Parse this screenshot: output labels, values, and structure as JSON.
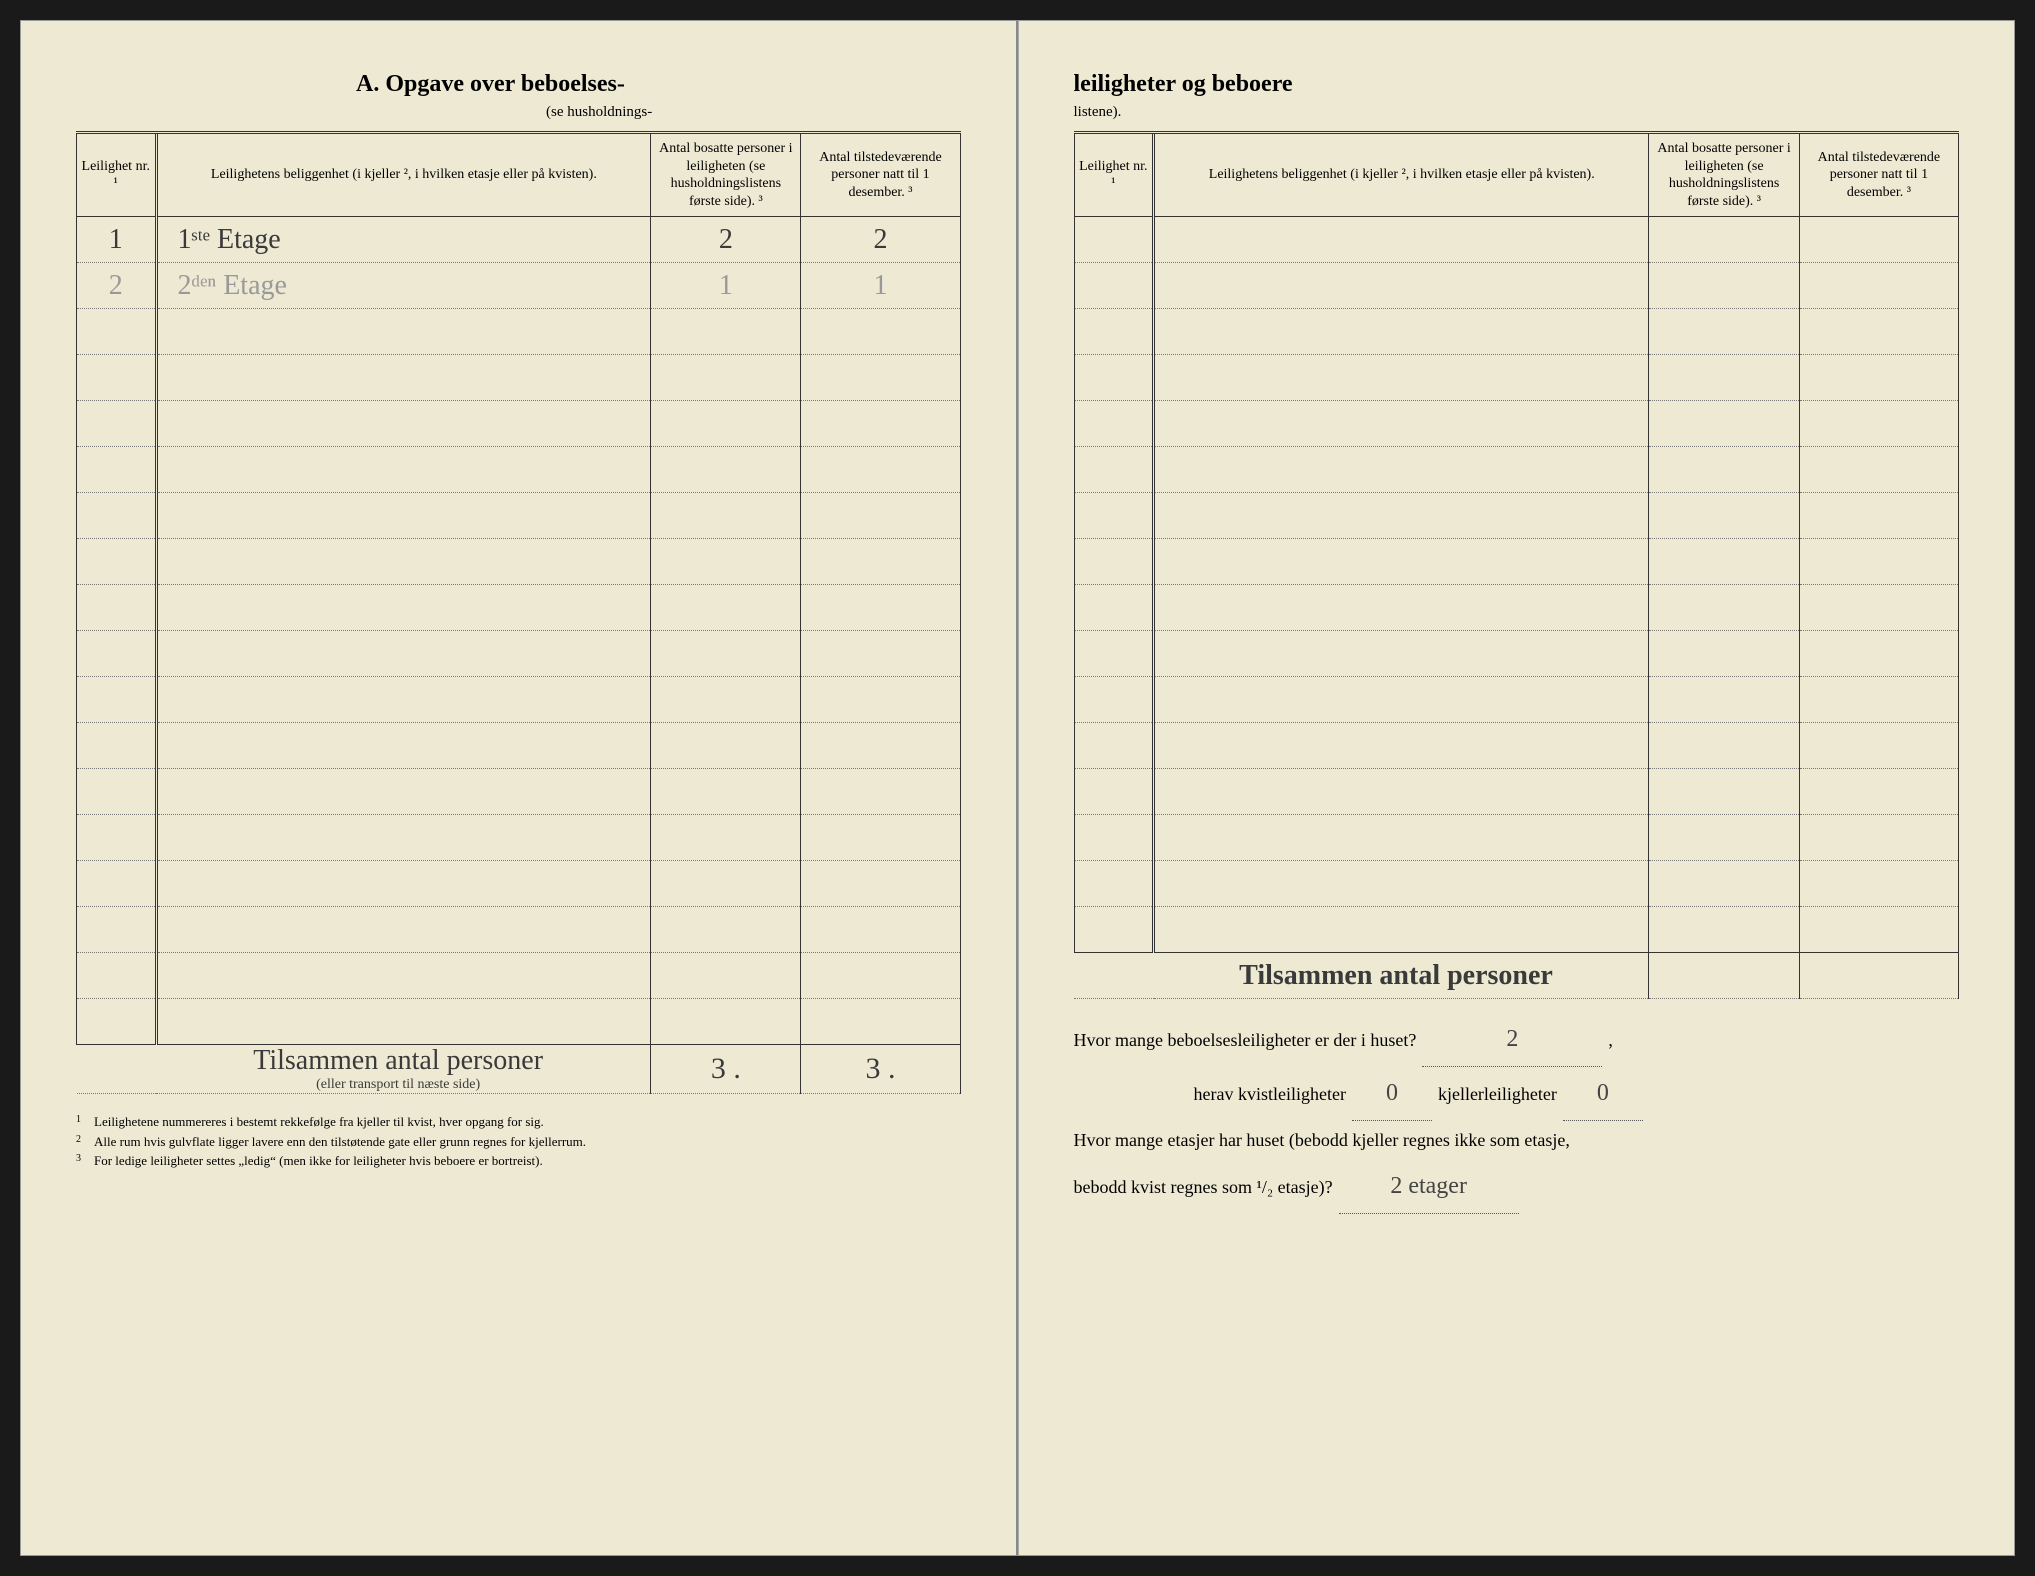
{
  "left": {
    "title": "A.  Opgave over beboelses-",
    "subtitle": "(se husholdnings-",
    "headers": {
      "nr": "Leilighet nr. ¹",
      "loc": "Leilighetens beliggenhet (i kjeller ², i hvilken etasje eller på kvisten).",
      "c3": "Antal bosatte personer i leiligheten (se husholdningslistens første side). ³",
      "c4": "Antal tilstedeværende personer natt til 1 desember. ³"
    },
    "rows": [
      {
        "nr": "1",
        "loc": "1ˢᵗᵉ Etage",
        "c3": "2",
        "c4": "2"
      },
      {
        "nr": "2",
        "loc": "2ᵈᵉⁿ Etage",
        "c3": "1",
        "c4": "1",
        "faint": true
      }
    ],
    "blank_row_count": 16,
    "sum_label": "Tilsammen antal personer",
    "sum_sublabel": "(eller transport til næste side)",
    "sum_c3": "3 .",
    "sum_c4": "3 .",
    "footnotes": [
      "Leilighetene nummereres i bestemt rekkefølge fra kjeller til kvist, hver opgang for sig.",
      "Alle rum hvis gulvflate ligger lavere enn den tilstøtende gate eller grunn regnes for kjellerrum.",
      "For ledige leiligheter settes „ledig“ (men ikke for leiligheter hvis beboere er bortreist)."
    ]
  },
  "right": {
    "title": "leiligheter og beboere",
    "subtitle": "listene).",
    "headers": {
      "nr": "Leilighet nr. ¹",
      "loc": "Leilighetens beliggenhet (i kjeller ², i hvilken etasje eller på kvisten).",
      "c3": "Antal bosatte personer i leiligheten (se husholdningslistens første side). ³",
      "c4": "Antal tilstedeværende personer natt til 1 desember. ³"
    },
    "blank_row_count": 16,
    "sum_label": "Tilsammen antal personer",
    "q1_a": "Hvor mange beboelsesleiligheter er der i huset?",
    "q1_val": "2",
    "q2_a": "herav kvistleiligheter",
    "q2_val1": "0",
    "q2_b": "kjellerleiligheter",
    "q2_val2": "0",
    "q3_a": "Hvor mange etasjer har huset (bebodd kjeller regnes ikke som etasje,",
    "q3_b": "bebodd kvist regnes som ¹/₂ etasje)?",
    "q3_val": "2 etager"
  }
}
